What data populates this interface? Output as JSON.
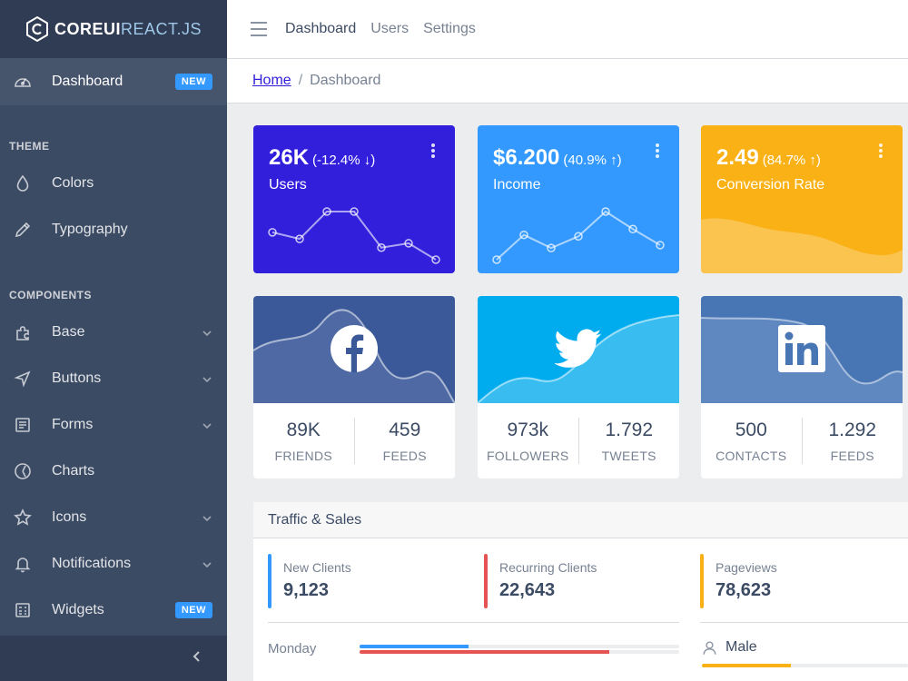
{
  "brand": {
    "name_bold": "COREUI",
    "name_thin": "REACT.JS"
  },
  "sidebar": {
    "dashboard": {
      "label": "Dashboard",
      "badge": "NEW"
    },
    "theme_title": "THEME",
    "theme_items": [
      {
        "label": "Colors",
        "icon": "drop-icon"
      },
      {
        "label": "Typography",
        "icon": "pencil-icon"
      }
    ],
    "components_title": "COMPONENTS",
    "component_items": [
      {
        "label": "Base",
        "icon": "puzzle-icon",
        "chevron": true
      },
      {
        "label": "Buttons",
        "icon": "cursor-icon",
        "chevron": true
      },
      {
        "label": "Forms",
        "icon": "notes-icon",
        "chevron": true
      },
      {
        "label": "Charts",
        "icon": "chart-pie-icon",
        "chevron": false
      },
      {
        "label": "Icons",
        "icon": "star-icon",
        "chevron": true
      },
      {
        "label": "Notifications",
        "icon": "bell-icon",
        "chevron": true
      },
      {
        "label": "Widgets",
        "icon": "calculator-icon",
        "badge": "NEW"
      }
    ]
  },
  "header": {
    "nav": [
      "Dashboard",
      "Users",
      "Settings"
    ]
  },
  "breadcrumb": {
    "home": "Home",
    "separator": "/",
    "current": "Dashboard"
  },
  "widgets": [
    {
      "value": "26K",
      "change": "(-12.4% ↓)",
      "label": "Users",
      "color": "#321fdb",
      "trend": [
        65,
        59,
        84,
        84,
        51,
        55,
        40
      ]
    },
    {
      "value": "$6.200",
      "change": "(40.9% ↑)",
      "label": "Income",
      "color": "#39f",
      "trend": [
        1,
        18,
        9,
        17,
        34,
        22,
        11
      ]
    },
    {
      "value": "2.49",
      "change": "(84.7% ↑)",
      "label": "Conversion Rate",
      "color": "#f9b115"
    }
  ],
  "social": [
    {
      "network": "facebook",
      "color": "#3b5998",
      "stats": [
        {
          "value": "89K",
          "label": "FRIENDS"
        },
        {
          "value": "459",
          "label": "FEEDS"
        }
      ]
    },
    {
      "network": "twitter",
      "color": "#00aced",
      "stats": [
        {
          "value": "973k",
          "label": "FOLLOWERS"
        },
        {
          "value": "1.792",
          "label": "TWEETS"
        }
      ]
    },
    {
      "network": "linkedin",
      "color": "#4875b4",
      "stats": [
        {
          "value": "500",
          "label": "CONTACTS"
        },
        {
          "value": "1.292",
          "label": "FEEDS"
        }
      ]
    }
  ],
  "traffic": {
    "title": "Traffic & Sales",
    "callouts": [
      {
        "label": "New Clients",
        "value": "9,123",
        "color": "#39f"
      },
      {
        "label": "Recurring Clients",
        "value": "22,643",
        "color": "#e55353"
      },
      {
        "label": "Pageviews",
        "value": "78,623",
        "color": "#f9b115"
      }
    ],
    "day": {
      "label": "Monday",
      "new_clients_pct": 34,
      "recurring_clients_pct": 78
    },
    "gender": {
      "label": "Male",
      "pct": 43
    }
  }
}
